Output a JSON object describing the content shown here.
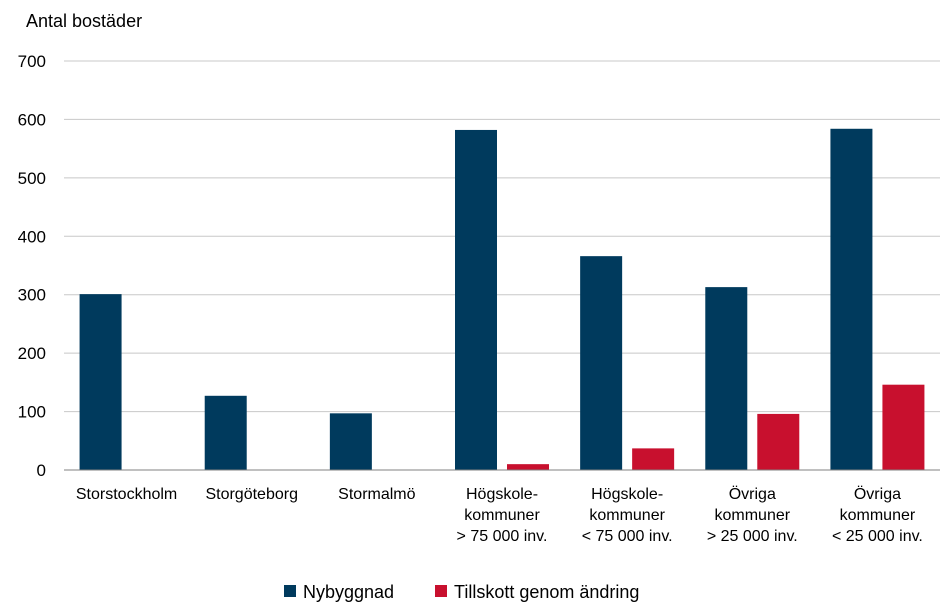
{
  "chart_data": {
    "type": "bar",
    "ylabel": "Antal bostäder",
    "ylim": [
      0,
      700
    ],
    "yticks": [
      0,
      100,
      200,
      300,
      400,
      500,
      600,
      700
    ],
    "grid": true,
    "legend_position": "bottom",
    "categories": [
      [
        "Storstockholm"
      ],
      [
        "Storgöteborg"
      ],
      [
        "Stormalmö"
      ],
      [
        "Högskole-",
        "kommuner",
        "> 75 000 inv."
      ],
      [
        "Högskole-",
        "kommuner",
        "< 75 000 inv."
      ],
      [
        "Övriga",
        "kommuner",
        "> 25 000 inv."
      ],
      [
        "Övriga",
        "kommuner",
        "< 25 000 inv."
      ]
    ],
    "series": [
      {
        "name": "Nybyggnad",
        "color": "#003a5d",
        "values": [
          301,
          127,
          97,
          582,
          366,
          313,
          584
        ]
      },
      {
        "name": "Tillskott genom ändring",
        "color": "#c8102e",
        "values": [
          0,
          0,
          0,
          10,
          37,
          96,
          146
        ]
      }
    ]
  }
}
